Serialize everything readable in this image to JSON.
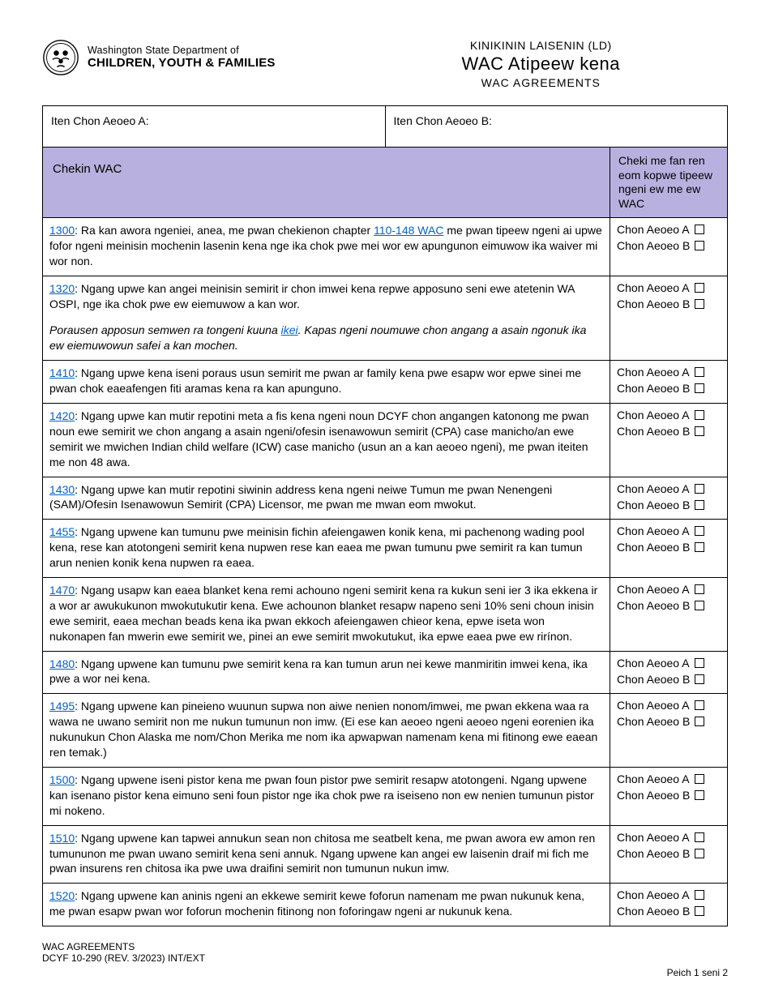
{
  "header": {
    "dept_top": "Washington State Department of",
    "dept_bottom": "CHILDREN, YOUTH & FAMILIES",
    "title_sup": "KINIKININ LAISENIN (LD)",
    "title_main": "WAC Atipeew kena",
    "title_sub": "WAC AGREEMENTS"
  },
  "name_row": {
    "a": "Iten Chon Aeoeo A:",
    "b": "Iten Chon Aeoeo B:"
  },
  "table_header": {
    "left": "Chekin WAC",
    "right": "Cheki me fan ren eom kopwe tipeew ngeni ew me ew WAC"
  },
  "checkbox_labels": {
    "a": "Chon Aeoeo A",
    "b": "Chon Aeoeo B"
  },
  "rows": [
    {
      "code": "1300",
      "pre": "",
      "link_mid": "110-148 WAC",
      "text_before_mid": ": Ra kan awora ngeniei, anea, me pwan chekienon chapter ",
      "text_after_mid": " me pwan tipeew ngeni ai upwe fofor ngeni meinisin mochenin lasenin kena nge ika chok pwe mei wor ew apungunon eimuwow ika waiver mi wor non.",
      "italic": ""
    },
    {
      "code": "1320",
      "text": ": Ngang upwe kan angei meinisin semirit ir chon imwei kena repwe apposuno seni ewe atetenin WA OSPI, nge ika chok pwe ew eiemuwow a kan wor.",
      "italic_pre": "Porausen apposun semwen ra tongeni kuuna ",
      "italic_link": "ikei",
      "italic_post": ". Kapas ngeni noumuwe chon angang a asain ngonuk ika ew eiemuwowun safei a kan mochen."
    },
    {
      "code": "1410",
      "text": ": Ngang upwe kena iseni poraus usun semirit me pwan ar family kena pwe esapw wor epwe sinei me pwan chok eaeafengen fiti aramas kena ra kan apunguno."
    },
    {
      "code": "1420",
      "text": ": Ngang upwe kan mutir repotini meta a fis kena ngeni noun DCYF chon angangen katonong me pwan noun ewe semirit we chon angang a asain ngeni/ofesin isenawowun semirit (CPA) case manicho/an ewe semirit we mwichen Indian child welfare (ICW) case manicho (usun an a kan aeoeo ngeni), me pwan iteiten me non 48 awa."
    },
    {
      "code": "1430",
      "text": ": Ngang upwe kan mutir repotini siwinin address kena ngeni neiwe Tumun me pwan Nenengeni (SAM)/Ofesin Isenawowun Semirit (CPA) Licensor, me pwan me mwan eom mwokut."
    },
    {
      "code": "1455",
      "text": ": Ngang upwene kan tumunu pwe meinisin fichin afeiengawen konik kena, mi pachenong wading pool kena, rese kan atotongeni semirit kena nupwen rese kan eaea me pwan tumunu pwe semirit ra kan tumun arun nenien konik kena nupwen ra eaea."
    },
    {
      "code": "1470",
      "text": ": Ngang usapw kan eaea blanket kena remi achouno ngeni semirit kena ra kukun seni ier 3 ika ekkena ir a wor ar awukukunon mwokutukutir kena. Ewe achounon blanket resapw napeno seni 10% seni choun inisin ewe semirit, eaea mechan beads kena ika pwan ekkoch afeiengawen chieor kena, epwe iseta won nukonapen fan mwerin ewe semirit we, pinei an ewe semirit mwokutukut, ika epwe eaea pwe ew rirínon."
    },
    {
      "code": "1480",
      "text": ": Ngang upwene kan tumunu pwe semirit kena ra kan tumun arun nei kewe manmiritin imwei kena, ika pwe a wor nei kena."
    },
    {
      "code": "1495",
      "text": ": Ngang upwene kan pineieno wuunun supwa non aiwe nenien nonom/imwei, me pwan ekkena waa ra wawa ne uwano semirit non me nukun tumunun non imw. (Ei ese kan aeoeo ngeni aeoeo ngeni eorenien ika nukunukun Chon Alaska me nom/Chon Merika me nom ika apwapwan namenam kena mi fitinong ewe eaean ren temak.)"
    },
    {
      "code": "1500",
      "text": ": Ngang upwene iseni pistor kena me pwan foun pistor pwe semirit resapw atotongeni. Ngang upwene kan isenano pistor kena eimuno seni foun pistor nge ika chok pwe ra iseiseno non ew nenien tumunun pistor mi nokeno."
    },
    {
      "code": "1510",
      "text": ": Ngang upwene kan tapwei annukun sean non chitosa me seatbelt kena, me pwan awora ew amon ren tumununon me pwan uwano semirit kena seni annuk. Ngang upwene kan angei ew laisenin draif mi fich me pwan insurens ren chitosa ika pwe uwa draifini semirit non tumunun nukun imw."
    },
    {
      "code": "1520",
      "text": ": Ngang upwene kan aninis ngeni an ekkewe semirit kewe foforun namenam me pwan nukunuk kena, me pwan esapw pwan wor foforun mochenin fitinong non foforingaw ngeni ar nukunuk kena."
    }
  ],
  "footer": {
    "line1": "WAC AGREEMENTS",
    "line2": "DCYF 10-290 (REV. 3/2023) INT/EXT",
    "page": "Peich 1 seni 2"
  },
  "colors": {
    "header_bg": "#b8b1df",
    "link": "#0563c1",
    "border": "#000000"
  }
}
